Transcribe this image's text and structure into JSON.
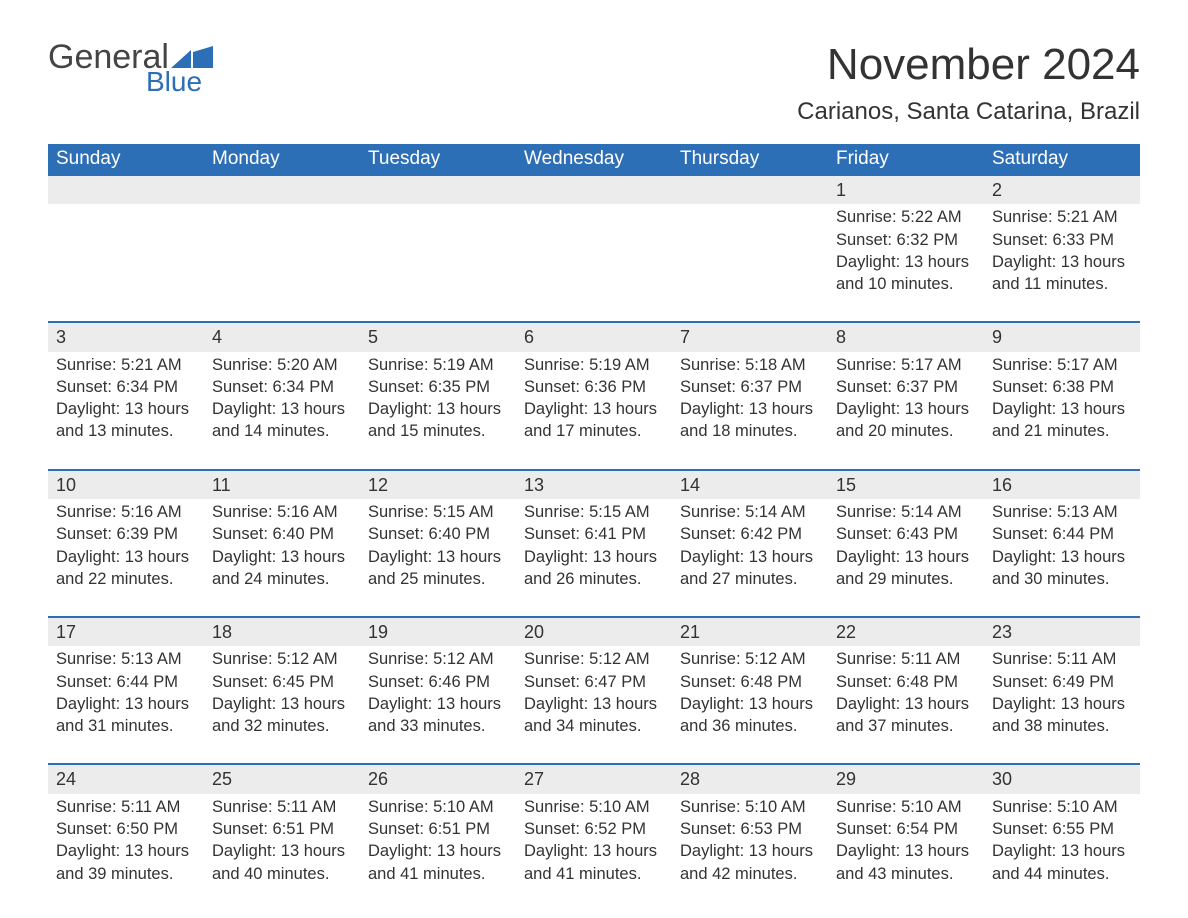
{
  "logo": {
    "text1": "General",
    "text2": "Blue",
    "brand_color": "#2d6fb6"
  },
  "title": "November 2024",
  "location": "Carianos, Santa Catarina, Brazil",
  "day_headers": [
    "Sunday",
    "Monday",
    "Tuesday",
    "Wednesday",
    "Thursday",
    "Friday",
    "Saturday"
  ],
  "colors": {
    "header_bg": "#2d6fb6",
    "header_text": "#ffffff",
    "daynum_bg": "#ececec",
    "divider": "#2d6fb6",
    "text": "#333333",
    "background": "#ffffff"
  },
  "typography": {
    "body_font": "Arial",
    "month_title_size_pt": 33,
    "location_size_pt": 18,
    "header_size_pt": 14,
    "daynum_size_pt": 14,
    "detail_size_pt": 12
  },
  "weeks": [
    [
      null,
      null,
      null,
      null,
      null,
      {
        "day": "1",
        "sunrise": "Sunrise: 5:22 AM",
        "sunset": "Sunset: 6:32 PM",
        "daylight": "Daylight: 13 hours and 10 minutes."
      },
      {
        "day": "2",
        "sunrise": "Sunrise: 5:21 AM",
        "sunset": "Sunset: 6:33 PM",
        "daylight": "Daylight: 13 hours and 11 minutes."
      }
    ],
    [
      {
        "day": "3",
        "sunrise": "Sunrise: 5:21 AM",
        "sunset": "Sunset: 6:34 PM",
        "daylight": "Daylight: 13 hours and 13 minutes."
      },
      {
        "day": "4",
        "sunrise": "Sunrise: 5:20 AM",
        "sunset": "Sunset: 6:34 PM",
        "daylight": "Daylight: 13 hours and 14 minutes."
      },
      {
        "day": "5",
        "sunrise": "Sunrise: 5:19 AM",
        "sunset": "Sunset: 6:35 PM",
        "daylight": "Daylight: 13 hours and 15 minutes."
      },
      {
        "day": "6",
        "sunrise": "Sunrise: 5:19 AM",
        "sunset": "Sunset: 6:36 PM",
        "daylight": "Daylight: 13 hours and 17 minutes."
      },
      {
        "day": "7",
        "sunrise": "Sunrise: 5:18 AM",
        "sunset": "Sunset: 6:37 PM",
        "daylight": "Daylight: 13 hours and 18 minutes."
      },
      {
        "day": "8",
        "sunrise": "Sunrise: 5:17 AM",
        "sunset": "Sunset: 6:37 PM",
        "daylight": "Daylight: 13 hours and 20 minutes."
      },
      {
        "day": "9",
        "sunrise": "Sunrise: 5:17 AM",
        "sunset": "Sunset: 6:38 PM",
        "daylight": "Daylight: 13 hours and 21 minutes."
      }
    ],
    [
      {
        "day": "10",
        "sunrise": "Sunrise: 5:16 AM",
        "sunset": "Sunset: 6:39 PM",
        "daylight": "Daylight: 13 hours and 22 minutes."
      },
      {
        "day": "11",
        "sunrise": "Sunrise: 5:16 AM",
        "sunset": "Sunset: 6:40 PM",
        "daylight": "Daylight: 13 hours and 24 minutes."
      },
      {
        "day": "12",
        "sunrise": "Sunrise: 5:15 AM",
        "sunset": "Sunset: 6:40 PM",
        "daylight": "Daylight: 13 hours and 25 minutes."
      },
      {
        "day": "13",
        "sunrise": "Sunrise: 5:15 AM",
        "sunset": "Sunset: 6:41 PM",
        "daylight": "Daylight: 13 hours and 26 minutes."
      },
      {
        "day": "14",
        "sunrise": "Sunrise: 5:14 AM",
        "sunset": "Sunset: 6:42 PM",
        "daylight": "Daylight: 13 hours and 27 minutes."
      },
      {
        "day": "15",
        "sunrise": "Sunrise: 5:14 AM",
        "sunset": "Sunset: 6:43 PM",
        "daylight": "Daylight: 13 hours and 29 minutes."
      },
      {
        "day": "16",
        "sunrise": "Sunrise: 5:13 AM",
        "sunset": "Sunset: 6:44 PM",
        "daylight": "Daylight: 13 hours and 30 minutes."
      }
    ],
    [
      {
        "day": "17",
        "sunrise": "Sunrise: 5:13 AM",
        "sunset": "Sunset: 6:44 PM",
        "daylight": "Daylight: 13 hours and 31 minutes."
      },
      {
        "day": "18",
        "sunrise": "Sunrise: 5:12 AM",
        "sunset": "Sunset: 6:45 PM",
        "daylight": "Daylight: 13 hours and 32 minutes."
      },
      {
        "day": "19",
        "sunrise": "Sunrise: 5:12 AM",
        "sunset": "Sunset: 6:46 PM",
        "daylight": "Daylight: 13 hours and 33 minutes."
      },
      {
        "day": "20",
        "sunrise": "Sunrise: 5:12 AM",
        "sunset": "Sunset: 6:47 PM",
        "daylight": "Daylight: 13 hours and 34 minutes."
      },
      {
        "day": "21",
        "sunrise": "Sunrise: 5:12 AM",
        "sunset": "Sunset: 6:48 PM",
        "daylight": "Daylight: 13 hours and 36 minutes."
      },
      {
        "day": "22",
        "sunrise": "Sunrise: 5:11 AM",
        "sunset": "Sunset: 6:48 PM",
        "daylight": "Daylight: 13 hours and 37 minutes."
      },
      {
        "day": "23",
        "sunrise": "Sunrise: 5:11 AM",
        "sunset": "Sunset: 6:49 PM",
        "daylight": "Daylight: 13 hours and 38 minutes."
      }
    ],
    [
      {
        "day": "24",
        "sunrise": "Sunrise: 5:11 AM",
        "sunset": "Sunset: 6:50 PM",
        "daylight": "Daylight: 13 hours and 39 minutes."
      },
      {
        "day": "25",
        "sunrise": "Sunrise: 5:11 AM",
        "sunset": "Sunset: 6:51 PM",
        "daylight": "Daylight: 13 hours and 40 minutes."
      },
      {
        "day": "26",
        "sunrise": "Sunrise: 5:10 AM",
        "sunset": "Sunset: 6:51 PM",
        "daylight": "Daylight: 13 hours and 41 minutes."
      },
      {
        "day": "27",
        "sunrise": "Sunrise: 5:10 AM",
        "sunset": "Sunset: 6:52 PM",
        "daylight": "Daylight: 13 hours and 41 minutes."
      },
      {
        "day": "28",
        "sunrise": "Sunrise: 5:10 AM",
        "sunset": "Sunset: 6:53 PM",
        "daylight": "Daylight: 13 hours and 42 minutes."
      },
      {
        "day": "29",
        "sunrise": "Sunrise: 5:10 AM",
        "sunset": "Sunset: 6:54 PM",
        "daylight": "Daylight: 13 hours and 43 minutes."
      },
      {
        "day": "30",
        "sunrise": "Sunrise: 5:10 AM",
        "sunset": "Sunset: 6:55 PM",
        "daylight": "Daylight: 13 hours and 44 minutes."
      }
    ]
  ]
}
